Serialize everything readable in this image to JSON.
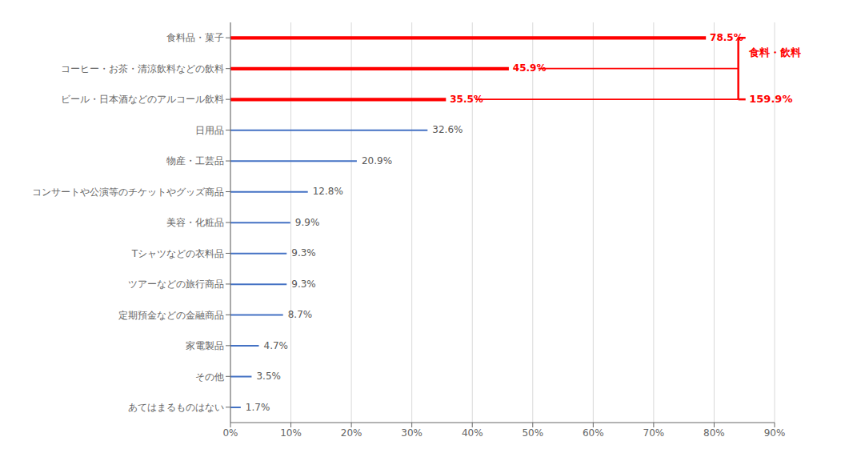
{
  "chart_data": {
    "type": "bar",
    "orientation": "horizontal",
    "categories": [
      "食料品・菓子",
      "コーヒー・お茶・清涼飲料などの飲料",
      "ビール・日本酒などのアルコール飲料",
      "日用品",
      "物産・工芸品",
      "コンサートや公演等のチケットやグッズ商品",
      "美容・化粧品",
      "Tシャツなどの衣料品",
      "ツアーなどの旅行商品",
      "定期預金などの金融商品",
      "家電製品",
      "その他",
      "あてはまるものはない"
    ],
    "values": [
      78.5,
      45.9,
      35.5,
      32.6,
      20.9,
      12.8,
      9.9,
      9.3,
      9.3,
      8.7,
      4.7,
      3.5,
      1.7
    ],
    "value_labels": [
      "78.5%",
      "45.9%",
      "35.5%",
      "32.6%",
      "20.9%",
      "12.8%",
      "9.9%",
      "9.3%",
      "9.3%",
      "8.7%",
      "4.7%",
      "3.5%",
      "1.7%"
    ],
    "data_labels": true,
    "color": "#4472C4",
    "xlim": [
      0,
      90
    ],
    "xticks": [
      {
        "value": 0,
        "label": "0%"
      },
      {
        "value": 10,
        "label": "10%"
      },
      {
        "value": 20,
        "label": "20%"
      },
      {
        "value": 30,
        "label": "30%"
      },
      {
        "value": 40,
        "label": "40%"
      },
      {
        "value": 50,
        "label": "50%"
      },
      {
        "value": 60,
        "label": "60%"
      },
      {
        "value": 70,
        "label": "70%"
      },
      {
        "value": 80,
        "label": "80%"
      },
      {
        "value": 90,
        "label": "90%"
      }
    ],
    "grid": true,
    "annotations": [
      {
        "text": "食料・飲料",
        "color": "#FF0000"
      },
      {
        "text": "159.9%",
        "color": "#FF0000"
      }
    ]
  }
}
